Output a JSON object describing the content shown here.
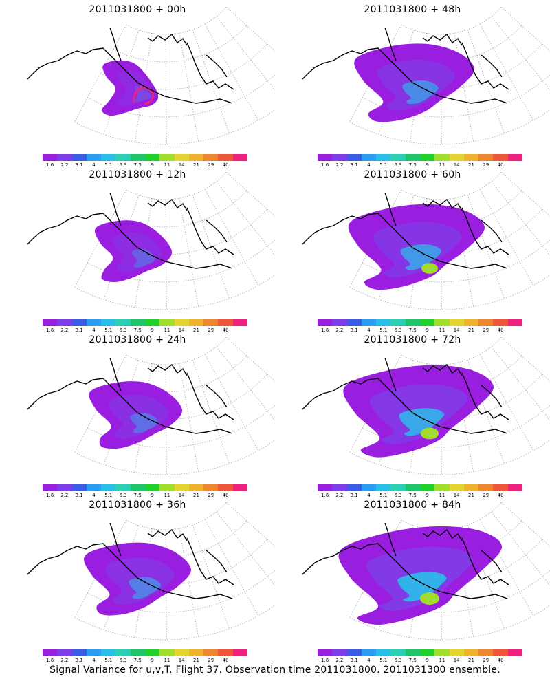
{
  "panels": [
    {
      "title": "2011031800 + 00h",
      "spread": 0.0
    },
    {
      "title": "2011031800 + 48h",
      "spread": 0.6
    },
    {
      "title": "2011031800 + 12h",
      "spread": 0.2
    },
    {
      "title": "2011031800 + 60h",
      "spread": 0.75
    },
    {
      "title": "2011031800 + 24h",
      "spread": 0.35
    },
    {
      "title": "2011031800 + 72h",
      "spread": 0.88
    },
    {
      "title": "2011031800 + 36h",
      "spread": 0.48
    },
    {
      "title": "2011031800 + 84h",
      "spread": 1.0
    }
  ],
  "colorbar": {
    "labels": [
      "1.6",
      "2.2",
      "3.1",
      "4",
      "5.1",
      "6.3",
      "7.5",
      "9",
      "11",
      "14",
      "21",
      "29",
      "40"
    ],
    "colors": [
      "#9a1ee0",
      "#7d3fe6",
      "#3b5ce6",
      "#2a9ef0",
      "#29c0e8",
      "#2ccfb5",
      "#1fc46a",
      "#1fd22a",
      "#a2dc2e",
      "#e6d530",
      "#efb22c",
      "#ee8530",
      "#f2563a",
      "#f0207e"
    ]
  },
  "caption": "Signal Variance for u,v,T. Flight 37. Observation time 2011031800. 2011031300 ensemble."
}
